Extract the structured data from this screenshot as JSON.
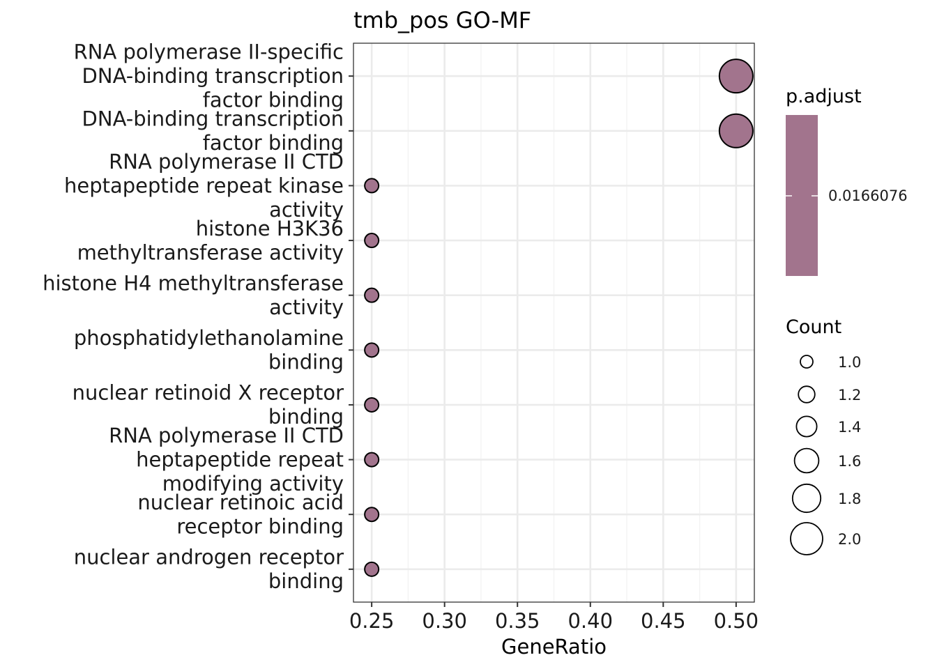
{
  "chart_data": {
    "type": "scatter",
    "title": "tmb_pos GO-MF",
    "xlabel": "GeneRatio",
    "ylabel": "",
    "xlim": [
      0.2375,
      0.5125
    ],
    "xticks": [
      "0.25",
      "0.30",
      "0.35",
      "0.40",
      "0.45",
      "0.50"
    ],
    "grid": true,
    "legend_position": "right",
    "point_color": "#a2748d",
    "categories": [
      "RNA polymerase II-specific\nDNA-binding transcription\nfactor binding",
      "DNA-binding transcription\nfactor binding",
      "RNA polymerase II CTD\nheptapeptide repeat kinase\nactivity",
      "histone H3K36\nmethyltransferase activity",
      "histone H4 methyltransferase\nactivity",
      "phosphatidylethanolamine\nbinding",
      "nuclear retinoid X receptor\nbinding",
      "RNA polymerase II CTD\nheptapeptide repeat\nmodifying activity",
      "nuclear retinoic acid\nreceptor binding",
      "nuclear androgen receptor\nbinding"
    ],
    "points": [
      {
        "x": 0.5,
        "count": 2,
        "p_adjust": 0.0166076
      },
      {
        "x": 0.5,
        "count": 2,
        "p_adjust": 0.0166076
      },
      {
        "x": 0.25,
        "count": 1,
        "p_adjust": 0.0166076
      },
      {
        "x": 0.25,
        "count": 1,
        "p_adjust": 0.0166076
      },
      {
        "x": 0.25,
        "count": 1,
        "p_adjust": 0.0166076
      },
      {
        "x": 0.25,
        "count": 1,
        "p_adjust": 0.0166076
      },
      {
        "x": 0.25,
        "count": 1,
        "p_adjust": 0.0166076
      },
      {
        "x": 0.25,
        "count": 1,
        "p_adjust": 0.0166076
      },
      {
        "x": 0.25,
        "count": 1,
        "p_adjust": 0.0166076
      },
      {
        "x": 0.25,
        "count": 1,
        "p_adjust": 0.0166076
      }
    ],
    "legend_color": {
      "title": "p.adjust",
      "label": "0.0166076",
      "color": "#a2748d"
    },
    "legend_size": {
      "title": "Count",
      "values": [
        1.0,
        1.2,
        1.4,
        1.6,
        1.8,
        2.0
      ],
      "labels": [
        "1.0",
        "1.2",
        "1.4",
        "1.6",
        "1.8",
        "2.0"
      ]
    }
  }
}
